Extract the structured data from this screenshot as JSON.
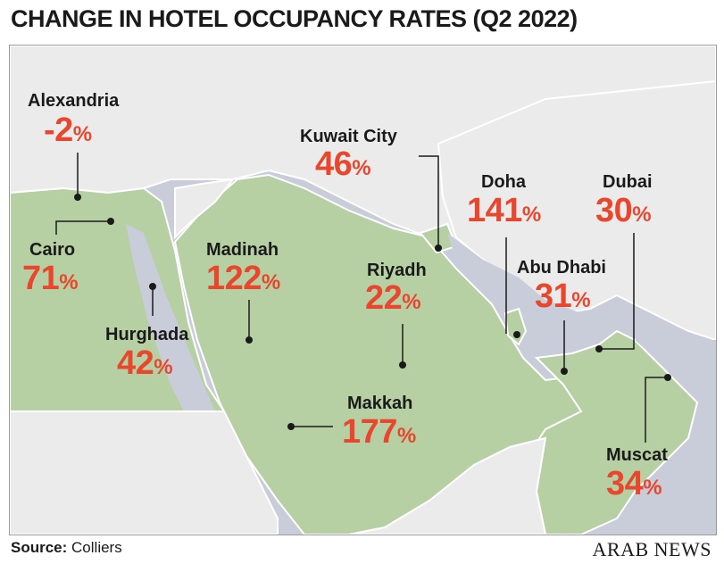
{
  "title": "CHANGE IN HOTEL OCCUPANCY RATES (Q2 2022)",
  "source_label": "Source:",
  "source_value": "Colliers",
  "brand": "ARAB NEWS",
  "colors": {
    "land_highlight": "#b6d0a3",
    "land_other": "#ebebeb",
    "water": "#c9ccd9",
    "value": "#e8462d",
    "text": "#1a1a1a"
  },
  "cities": [
    {
      "name": "Alexandria",
      "value": "-2",
      "unit": "%"
    },
    {
      "name": "Cairo",
      "value": "71",
      "unit": "%"
    },
    {
      "name": "Hurghada",
      "value": "42",
      "unit": "%"
    },
    {
      "name": "Madinah",
      "value": "122",
      "unit": "%"
    },
    {
      "name": "Kuwait City",
      "value": "46",
      "unit": "%"
    },
    {
      "name": "Riyadh",
      "value": "22",
      "unit": "%"
    },
    {
      "name": "Makkah",
      "value": "177",
      "unit": "%"
    },
    {
      "name": "Doha",
      "value": "141",
      "unit": "%"
    },
    {
      "name": "Abu Dhabi",
      "value": "31",
      "unit": "%"
    },
    {
      "name": "Dubai",
      "value": "30",
      "unit": "%"
    },
    {
      "name": "Muscat",
      "value": "34",
      "unit": "%"
    }
  ]
}
